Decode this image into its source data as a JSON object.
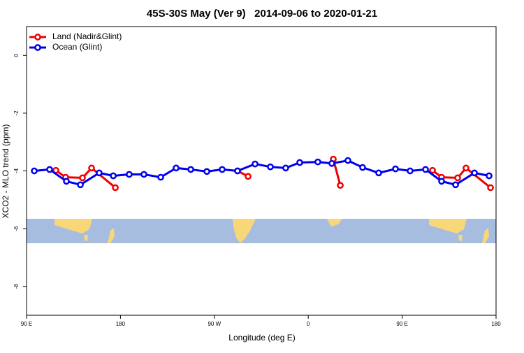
{
  "chart_data": {
    "type": "line",
    "title": "45S-30S May (Ver 9)   2014-09-06 to 2020-01-21",
    "x_label": "Longitude (deg E)",
    "y_label": "XCO2 - MLO trend (ppm)",
    "xlim": [
      90,
      540
    ],
    "ylim": [
      -9,
      1
    ],
    "xticks": [
      {
        "value": 90,
        "label": "90 E"
      },
      180,
      {
        "value": 270,
        "label": "90 W"
      },
      {
        "value": 360,
        "label": "0"
      },
      {
        "value": 450,
        "label": "90 E"
      },
      {
        "value": 540,
        "label": "180"
      }
    ],
    "yticks": [
      0,
      -2,
      -4,
      -6,
      -8
    ],
    "legend": "top-left",
    "series": [
      {
        "name": "Land (Nadir&Glint)",
        "color": "#ee0000",
        "x": [
          118.1,
          127.5,
          143.6,
          152.3,
          175.1,
          null,
          292.2,
          302.3,
          null,
          384,
          390.7,
          null,
          479.1,
          487.8,
          503.2,
          511.2,
          534.7
        ],
        "values": [
          -3.98,
          -4.22,
          -4.24,
          -3.9,
          -4.58,
          null,
          -4.0,
          -4.19,
          null,
          -3.59,
          -4.5,
          null,
          -3.98,
          -4.22,
          -4.24,
          -3.9,
          -4.58
        ]
      },
      {
        "name": "Ocean (Glint)",
        "color": "#0000ee",
        "x": [
          97.4,
          112.1,
          128.2,
          141.6,
          159.6,
          173.1,
          188.4,
          202.5,
          218.6,
          233.3,
          247.4,
          262.8,
          277.5,
          292.2,
          309,
          323.7,
          338.4,
          351.8,
          369.2,
          382.6,
          398,
          412.1,
          427.5,
          443.6,
          457.6,
          472.4,
          487.8,
          501.2,
          519.3,
          533.3
        ],
        "values": [
          -4.0,
          -3.95,
          -4.36,
          -4.48,
          -4.07,
          -4.17,
          -4.12,
          -4.12,
          -4.22,
          -3.9,
          -3.95,
          -4.02,
          -3.95,
          -4.0,
          -3.76,
          -3.86,
          -3.9,
          -3.71,
          -3.69,
          -3.74,
          -3.64,
          -3.88,
          -4.07,
          -3.93,
          -4.0,
          -3.95,
          -4.36,
          -4.48,
          -4.07,
          -4.17
        ]
      }
    ]
  }
}
